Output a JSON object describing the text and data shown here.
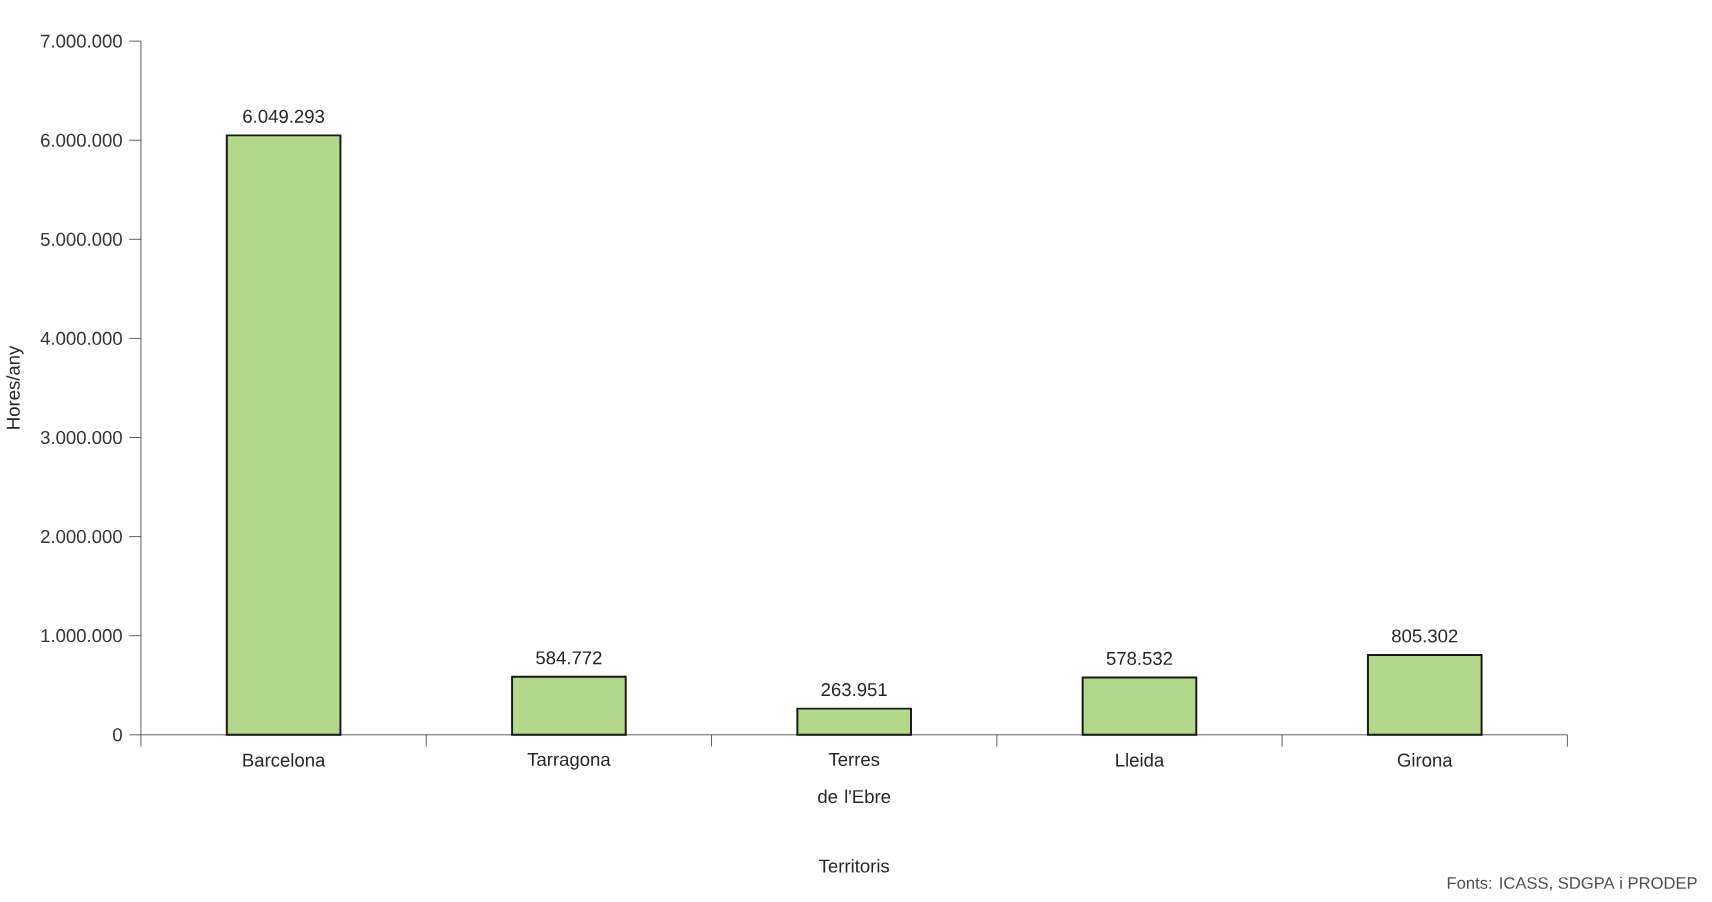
{
  "chart_data": {
    "type": "bar",
    "xlabel": "Territoris",
    "ylabel": "Hores/any",
    "categories": [
      "Barcelona",
      "Tarragona",
      "Terres de l'Ebre",
      "Lleida",
      "Girona"
    ],
    "values": [
      6049293,
      584772,
      263951,
      578532,
      805302
    ],
    "value_labels": [
      "6.049.293",
      "584.772",
      "263.951",
      "578.532",
      "805.302"
    ],
    "color": "#b3d78b",
    "ylim": [
      0,
      7000000
    ],
    "yticks": [
      0,
      {
        "value": 1000000,
        "label": "1.000.000"
      },
      {
        "value": 2000000,
        "label": "2.000.000"
      },
      {
        "value": 3000000,
        "label": "3.000.000"
      },
      {
        "value": 4000000,
        "label": "4.000.000"
      },
      {
        "value": 5000000,
        "label": "5.000.000"
      },
      {
        "value": 6000000,
        "label": "6.000.000"
      },
      {
        "value": 7000000,
        "label": "7.000.000"
      }
    ],
    "annotations": [
      "Fonts: ICASS, SDGPA i PRODEP"
    ]
  }
}
